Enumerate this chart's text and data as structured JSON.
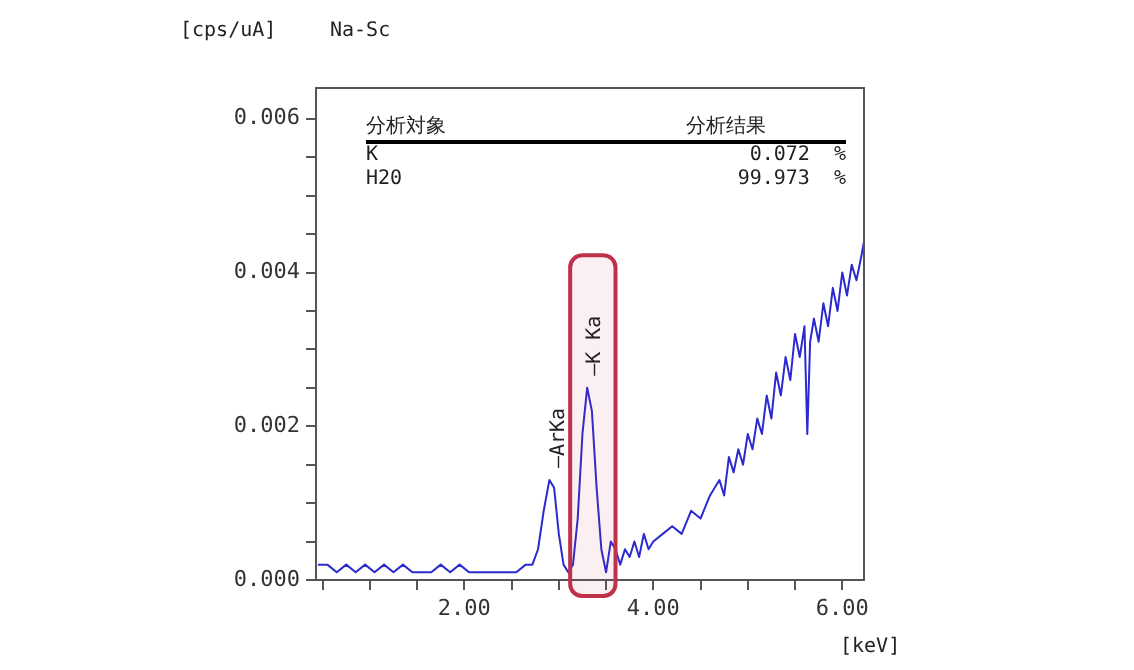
{
  "chart_data": {
    "type": "line",
    "title": "Na-Sc",
    "ylabel": "[cps/uA]",
    "xlabel": "[keV]",
    "annotations": [
      "分析対象",
      "分析结果",
      "K",
      "0.072  %",
      "H20",
      "99.973  %",
      {
        "text": "—ArKa",
        "x": 2.92,
        "y": 0.0013
      },
      {
        "text": "—K Ka",
        "x": 3.3,
        "y": 0.0025
      }
    ],
    "bands": [
      {
        "axis": "x",
        "from": 3.12,
        "to": 3.6,
        "color": "#c0304a"
      }
    ],
    "x": [
      0.45,
      0.55,
      0.65,
      0.75,
      0.85,
      0.95,
      1.05,
      1.15,
      1.25,
      1.35,
      1.45,
      1.55,
      1.65,
      1.75,
      1.85,
      1.95,
      2.05,
      2.15,
      2.25,
      2.35,
      2.45,
      2.55,
      2.65,
      2.72,
      2.78,
      2.84,
      2.9,
      2.95,
      3.0,
      3.05,
      3.1,
      3.15,
      3.2,
      3.25,
      3.3,
      3.35,
      3.4,
      3.45,
      3.5,
      3.55,
      3.6,
      3.65,
      3.7,
      3.75,
      3.8,
      3.85,
      3.9,
      3.95,
      4.0,
      4.1,
      4.2,
      4.3,
      4.4,
      4.5,
      4.6,
      4.7,
      4.75,
      4.8,
      4.85,
      4.9,
      4.95,
      5.0,
      5.05,
      5.1,
      5.15,
      5.2,
      5.25,
      5.3,
      5.35,
      5.4,
      5.45,
      5.5,
      5.55,
      5.6,
      5.63,
      5.66,
      5.7,
      5.75,
      5.8,
      5.85,
      5.9,
      5.95,
      6.0,
      6.05,
      6.1,
      6.15,
      6.2,
      6.23
    ],
    "series": [
      {
        "color": "#2a2ad0",
        "values": [
          0.0002,
          0.0002,
          0.0001,
          0.0002,
          0.0001,
          0.0002,
          0.0001,
          0.0002,
          0.0001,
          0.0002,
          0.0001,
          0.0001,
          0.0001,
          0.0002,
          0.0001,
          0.0002,
          0.0001,
          0.0001,
          0.0001,
          0.0001,
          0.0001,
          0.0001,
          0.0002,
          0.0002,
          0.0004,
          0.0009,
          0.0013,
          0.0012,
          0.0006,
          0.0002,
          0.0001,
          0.0002,
          0.0008,
          0.0019,
          0.0025,
          0.0022,
          0.0012,
          0.0004,
          0.0001,
          0.0005,
          0.0004,
          0.0002,
          0.0004,
          0.0003,
          0.0005,
          0.0003,
          0.0006,
          0.0004,
          0.0005,
          0.0006,
          0.0007,
          0.0006,
          0.0009,
          0.0008,
          0.0011,
          0.0013,
          0.0011,
          0.0016,
          0.0014,
          0.0017,
          0.0015,
          0.0019,
          0.0017,
          0.0021,
          0.0019,
          0.0024,
          0.0021,
          0.0027,
          0.0024,
          0.0029,
          0.0026,
          0.0032,
          0.0029,
          0.0033,
          0.0019,
          0.0031,
          0.0034,
          0.0031,
          0.0036,
          0.0033,
          0.0038,
          0.0035,
          0.004,
          0.0037,
          0.0041,
          0.0039,
          0.0042,
          0.0044
        ]
      }
    ],
    "xlim": [
      0.43,
      6.23
    ],
    "ylim": [
      0,
      0.0064
    ],
    "xticks": [
      {
        "value": 0.5,
        "label": null
      },
      {
        "value": 1,
        "label": null
      },
      {
        "value": 1.5,
        "label": null
      },
      {
        "value": 2,
        "label": "2.00"
      },
      {
        "value": 2.5,
        "label": null
      },
      {
        "value": 3,
        "label": null
      },
      {
        "value": 3.5,
        "label": null
      },
      {
        "value": 4,
        "label": "4.00"
      },
      {
        "value": 4.5,
        "label": null
      },
      {
        "value": 5,
        "label": null
      },
      {
        "value": 5.5,
        "label": null
      },
      {
        "value": 6,
        "label": "6.00"
      }
    ],
    "yticks": [
      {
        "value": 0,
        "label": "0.000"
      },
      {
        "value": 0.0005,
        "label": null
      },
      {
        "value": 0.001,
        "label": null
      },
      {
        "value": 0.0015,
        "label": null
      },
      {
        "value": 0.002,
        "label": "0.002"
      },
      {
        "value": 0.0025,
        "label": null
      },
      {
        "value": 0.003,
        "label": null
      },
      {
        "value": 0.0035,
        "label": null
      },
      {
        "value": 0.004,
        "label": "0.004"
      },
      {
        "value": 0.0045,
        "label": null
      },
      {
        "value": 0.005,
        "label": null
      },
      {
        "value": 0.0055,
        "label": null
      },
      {
        "value": 0.006,
        "label": "0.006"
      }
    ],
    "grid": false,
    "legend": false,
    "marker": "none",
    "line_style": "solid"
  }
}
